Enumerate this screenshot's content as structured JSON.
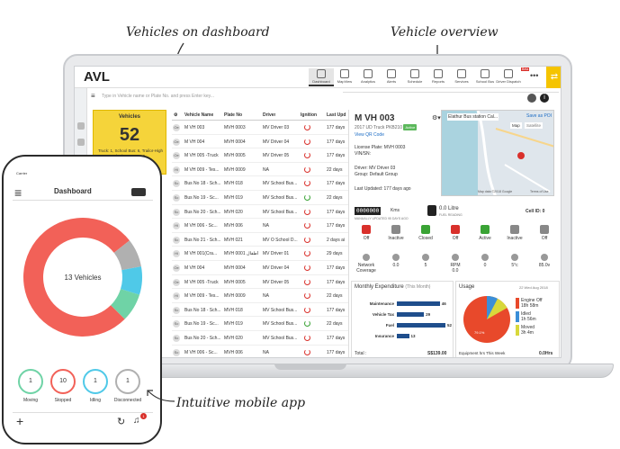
{
  "annotations": {
    "dashboard": "Vehicles on dashboard",
    "overview": "Vehicle overview",
    "mobile": "Intuitive mobile app"
  },
  "app": {
    "title": "AVL",
    "nav": [
      "Dashboard",
      "MapView",
      "Analytics",
      "Alerts",
      "Schedule",
      "Reports",
      "Services",
      "School Bus",
      "Driver Dispatch"
    ],
    "nav_beta": "Beta",
    "more": "•••",
    "search_placeholder": "Type in Vehicle name or Plate No. and press Enter key...",
    "accent": "#f5c400"
  },
  "vehicles_card": {
    "title": "Vehicles",
    "count": "52",
    "details": "Truck: 1, School Bus: 6, Trailor-High bed: 1, Crane: 2"
  },
  "table": {
    "headers": [
      "Vehicle Name",
      "Plate No",
      "Driver",
      "Ignition",
      "Last Upd"
    ],
    "rows": [
      {
        "av": "Oe",
        "name": "M VH 003",
        "plate": "MVH 0003",
        "driver": "MV Driver 03",
        "ign": "off",
        "upd": "177 days"
      },
      {
        "av": "Oe",
        "name": "M VH 004",
        "plate": "MVH 0004",
        "driver": "MV Driver 04",
        "ign": "off",
        "upd": "177 days"
      },
      {
        "av": "Oe",
        "name": "M VH 005 -Truck",
        "plate": "MVH 0005",
        "driver": "MV Driver 05",
        "ign": "off",
        "upd": "177 days"
      },
      {
        "av": "Hi",
        "name": "M VH 009 - Tes...",
        "plate": "MVH 0009",
        "driver": "NA",
        "ign": "off",
        "upd": "22 days"
      },
      {
        "av": "Sc",
        "name": "Bus No 18 - Sch...",
        "plate": "MVH 018",
        "driver": "MV School Bus...",
        "ign": "off",
        "upd": "177 days"
      },
      {
        "av": "Sc",
        "name": "Bus No 19 - Sc...",
        "plate": "MVH 019",
        "driver": "MV School Bus...",
        "ign": "on",
        "upd": "22 days"
      },
      {
        "av": "Sc",
        "name": "Bus No 20 - Sch...",
        "plate": "MVH 020",
        "driver": "MV School Bus...",
        "ign": "off",
        "upd": "177 days"
      },
      {
        "av": "Hi",
        "name": "M VH 006 - Sc...",
        "plate": "MVH 006",
        "driver": "NA",
        "ign": "off",
        "upd": "177 days"
      },
      {
        "av": "Sc",
        "name": "Bus No 21 - Sch...",
        "plate": "MVH 021",
        "driver": "MV O School D...",
        "ign": "off",
        "upd": "2 days ai"
      },
      {
        "av": "Hi",
        "name": "M VH 001(Cra...",
        "plate": "MVH 0001 أطفال",
        "driver": "MV Driver 01",
        "ign": "off",
        "upd": "29 days"
      },
      {
        "av": "Oe",
        "name": "M VH 004",
        "plate": "MVH 0004",
        "driver": "MV Driver 04",
        "ign": "off",
        "upd": "177 days"
      },
      {
        "av": "Oe",
        "name": "M VH 005 -Truck",
        "plate": "MVH 0005",
        "driver": "MV Driver 05",
        "ign": "off",
        "upd": "177 days"
      },
      {
        "av": "Hi",
        "name": "M VH 009 - Tes...",
        "plate": "MVH 0009",
        "driver": "NA",
        "ign": "off",
        "upd": "22 days"
      },
      {
        "av": "Sc",
        "name": "Bus No 18 - Sch...",
        "plate": "MVH 018",
        "driver": "MV School Bus...",
        "ign": "off",
        "upd": "177 days"
      },
      {
        "av": "Sc",
        "name": "Bus No 19 - Sc...",
        "plate": "MVH 019",
        "driver": "MV School Bus...",
        "ign": "on",
        "upd": "22 days"
      },
      {
        "av": "Sc",
        "name": "Bus No 20 - Sch...",
        "plate": "MVH 020",
        "driver": "MV School Bus...",
        "ign": "off",
        "upd": "177 days"
      },
      {
        "av": "Sc",
        "name": "M VH 006 - Sc...",
        "plate": "MVH 006",
        "driver": "NA",
        "ign": "off",
        "upd": "177 days"
      }
    ]
  },
  "overview": {
    "vehicle": "M VH 003",
    "model": "2017 UD Truck PKB210",
    "status": "Active",
    "qr": "View QR Code",
    "plate": "License Plate: MVH 0003",
    "vin": "VIN/SN:",
    "driver": "Driver: MV Driver 03",
    "group": "Group: Default Group",
    "last_updated": "Last Updated: 177 days ago",
    "location": "Elathur Bus station Cal...",
    "save_poi": "Save as POI",
    "map_tab": "Map",
    "sat_tab": "Satellite",
    "map_credit": "Map data ©2018 Google",
    "terms": "Terms of Use",
    "odometer": "0000000",
    "odo_unit": "Kms",
    "odo_caption": "MANUALLY UPDATED 95 DAYS AGO",
    "fuel": "0.0 Litre",
    "fuel_caption": "FUEL READING",
    "cell_id": "Cell ID: 0",
    "stats_row1": [
      {
        "label": "Off",
        "color": "#d9302b"
      },
      {
        "label": "Inactive",
        "color": "#888888"
      },
      {
        "label": "Closed",
        "color": "#3aa335"
      },
      {
        "label": "Off",
        "color": "#d9302b"
      },
      {
        "label": "Active",
        "color": "#3aa335"
      },
      {
        "label": "Inactive",
        "color": "#888888"
      },
      {
        "label": "Off",
        "color": "#888888"
      }
    ],
    "stats_row2": [
      {
        "label": "Network Coverage",
        "value": ""
      },
      {
        "label": "",
        "value": "0.0"
      },
      {
        "label": "",
        "value": "5"
      },
      {
        "label": "RPM",
        "value": "0.0"
      },
      {
        "label": "",
        "value": "0"
      },
      {
        "label": "",
        "value": "5°c"
      },
      {
        "label": "",
        "value": "85.0v"
      }
    ]
  },
  "expenditure": {
    "title": "Monthly Expenditure",
    "period": "(This Month)",
    "items": [
      {
        "label": "Maintenance",
        "value": 46
      },
      {
        "label": "Vehicle Tax",
        "value": 29
      },
      {
        "label": "Fuel",
        "value": 52
      },
      {
        "label": "Insurance",
        "value": 13
      }
    ],
    "total_label": "Total :",
    "total": "S$139.00"
  },
  "usage": {
    "title": "Usage",
    "date": "22 Wed Aug 2018",
    "legend": [
      {
        "label": "Engine Off",
        "time": "18h 58m",
        "color": "#e8492b"
      },
      {
        "label": "Idled",
        "time": "1h 56m",
        "color": "#3b8ed8"
      },
      {
        "label": "Moved",
        "time": "3h 4m",
        "color": "#d8d83b"
      }
    ],
    "pie_label": "79.1%",
    "footer": "Equipment hrs This Week",
    "footer_value": "0.0Hrs"
  },
  "phone": {
    "carrier": "Carrier",
    "title": "Dashboard",
    "center_label": "13 Vehicles",
    "donut": [
      {
        "label": "Stopped",
        "value": 10,
        "color": "#f26158"
      },
      {
        "label": "Disconnected",
        "value": 1,
        "color": "#b0b0b0"
      },
      {
        "label": "Idling",
        "value": 1,
        "color": "#4fc9e8"
      },
      {
        "label": "Moving",
        "value": 1,
        "color": "#6fd3a6"
      }
    ],
    "stats": [
      {
        "label": "Moving",
        "value": "1",
        "color": "#6fd3a6"
      },
      {
        "label": "Stopped",
        "value": "10",
        "color": "#f26158"
      },
      {
        "label": "Idling",
        "value": "1",
        "color": "#4fc9e8"
      },
      {
        "label": "Disconnected",
        "value": "1",
        "color": "#b0b0b0"
      }
    ],
    "notif_count": "1"
  }
}
